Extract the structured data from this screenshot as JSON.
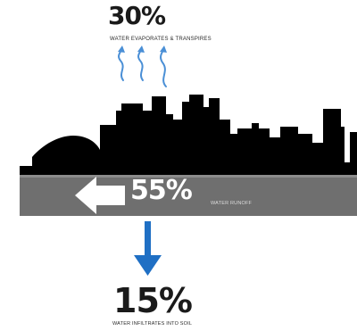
{
  "evaporation": {
    "percent": "30%",
    "caption": "WATER EVAPORATES & TRANSPIRES"
  },
  "runoff": {
    "percent": "55%",
    "caption": "WATER RUNOFF"
  },
  "infiltration": {
    "percent": "15%",
    "caption": "WATER INFILTRATES INTO SOIL"
  },
  "colors": {
    "skyline": "#000000",
    "ground": "#6f6f6f",
    "evaporation_arrows": "#4a8fd6",
    "infiltration_arrow": "#1f6fc4",
    "runoff_arrow": "#ffffff"
  }
}
